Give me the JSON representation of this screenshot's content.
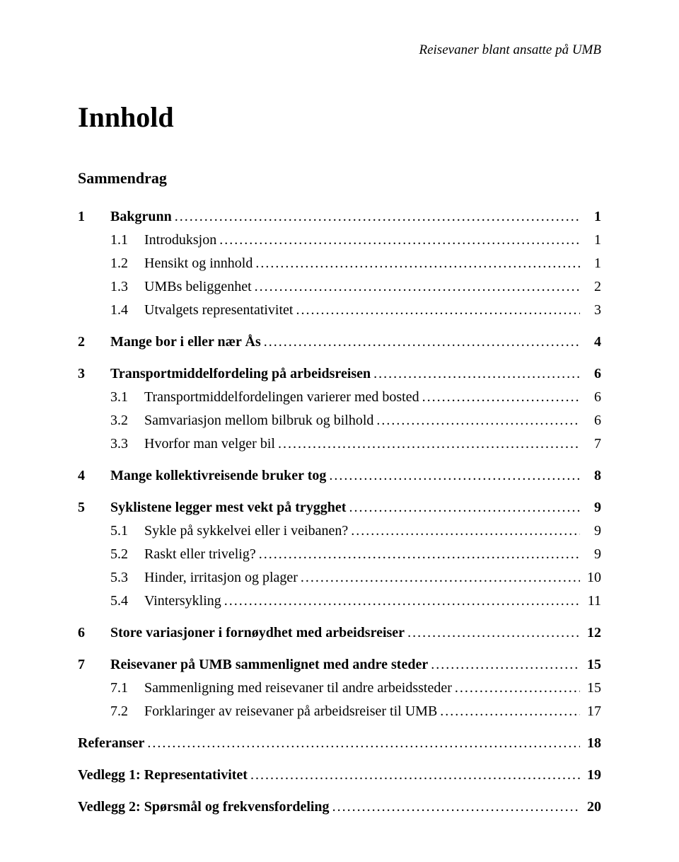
{
  "running_header": "Reisevaner blant ansatte på UMB",
  "title": "Innhold",
  "sammendrag": "Sammendrag",
  "toc": [
    {
      "level": 1,
      "num": "1",
      "label": "Bakgrunn",
      "page": "1"
    },
    {
      "level": 2,
      "num": "1.1",
      "label": "Introduksjon",
      "page": "1"
    },
    {
      "level": 2,
      "num": "1.2",
      "label": "Hensikt og innhold",
      "page": "1"
    },
    {
      "level": 2,
      "num": "1.3",
      "label": "UMBs beliggenhet",
      "page": "2"
    },
    {
      "level": 2,
      "num": "1.4",
      "label": "Utvalgets representativitet",
      "page": "3"
    },
    {
      "level": 1,
      "num": "2",
      "label": "Mange bor i eller nær Ås",
      "page": "4"
    },
    {
      "level": 1,
      "num": "3",
      "label": "Transportmiddelfordeling på arbeidsreisen",
      "page": "6"
    },
    {
      "level": 2,
      "num": "3.1",
      "label": "Transportmiddelfordelingen varierer med bosted",
      "page": "6"
    },
    {
      "level": 2,
      "num": "3.2",
      "label": "Samvariasjon mellom bilbruk og bilhold",
      "page": "6"
    },
    {
      "level": 2,
      "num": "3.3",
      "label": "Hvorfor man velger bil",
      "page": "7"
    },
    {
      "level": 1,
      "num": "4",
      "label": "Mange kollektivreisende bruker tog",
      "page": "8"
    },
    {
      "level": 1,
      "num": "5",
      "label": "Syklistene legger mest vekt på trygghet",
      "page": "9"
    },
    {
      "level": 2,
      "num": "5.1",
      "label": "Sykle på sykkelvei eller i veibanen?",
      "page": "9"
    },
    {
      "level": 2,
      "num": "5.2",
      "label": "Raskt eller trivelig?",
      "page": "9"
    },
    {
      "level": 2,
      "num": "5.3",
      "label": "Hinder, irritasjon og plager",
      "page": "10"
    },
    {
      "level": 2,
      "num": "5.4",
      "label": "Vintersykling",
      "page": "11"
    },
    {
      "level": 1,
      "num": "6",
      "label": "Store variasjoner i fornøydhet med arbeidsreiser",
      "page": "12"
    },
    {
      "level": 1,
      "num": "7",
      "label": "Reisevaner på UMB sammenlignet med andre steder",
      "page": "15"
    },
    {
      "level": 2,
      "num": "7.1",
      "label": "Sammenligning med reisevaner til andre arbeidssteder",
      "page": "15"
    },
    {
      "level": 2,
      "num": "7.2",
      "label": "Forklaringer av reisevaner på arbeidsreiser til UMB",
      "page": "17"
    },
    {
      "level": 0,
      "num": "",
      "label": "Referanser",
      "page": "18"
    },
    {
      "level": 0,
      "num": "",
      "label": "Vedlegg 1: Representativitet",
      "page": "19"
    },
    {
      "level": 0,
      "num": "",
      "label": "Vedlegg 2: Spørsmål og frekvensfordeling",
      "page": "20"
    }
  ]
}
